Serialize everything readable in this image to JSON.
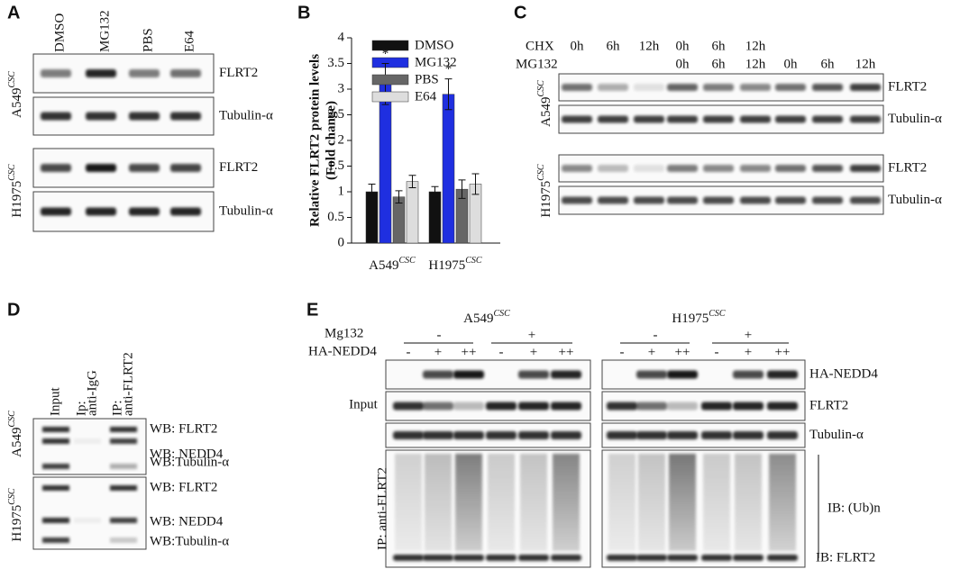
{
  "panel_a": {
    "label": "A",
    "lanes": [
      "DMSO",
      "MG132",
      "PBS",
      "E64"
    ],
    "blots": [
      "FLRT2",
      "Tubulin-α",
      "FLRT2",
      "Tubulin-α"
    ],
    "cell_lines": [
      {
        "name": "A549",
        "sup": "CSC"
      },
      {
        "name": "H1975",
        "sup": "CSC"
      }
    ]
  },
  "chart_data": {
    "type": "bar",
    "label": "B",
    "ylabel": [
      "Relative FLRT2 protein levels",
      "(Fold change)"
    ],
    "categories": [
      "A549",
      "H1975"
    ],
    "category_superscripts": [
      "CSC",
      "CSC"
    ],
    "series": [
      {
        "name": "DMSO",
        "color": "#111111",
        "values": [
          1.0,
          1.0
        ],
        "errors": [
          0.15,
          0.1
        ]
      },
      {
        "name": "MG132",
        "color": "#1f2fe0",
        "values": [
          3.1,
          2.9
        ],
        "errors": [
          0.4,
          0.3
        ],
        "annotations": [
          "*",
          "*"
        ]
      },
      {
        "name": "PBS",
        "color": "#666666",
        "values": [
          0.9,
          1.05
        ],
        "errors": [
          0.12,
          0.18
        ]
      },
      {
        "name": "E64",
        "color": "#dddddd",
        "values": [
          1.2,
          1.15
        ],
        "errors": [
          0.12,
          0.2
        ]
      }
    ],
    "ylim": [
      0,
      4
    ],
    "yticks": [
      0,
      0.5,
      1,
      1.5,
      2,
      2.5,
      3,
      3.5,
      4
    ],
    "legend": "top"
  },
  "panel_c": {
    "label": "C",
    "row_labels": [
      "CHX",
      "MG132"
    ],
    "chx": [
      "0h",
      "6h",
      "12h",
      "0h",
      "6h",
      "12h"
    ],
    "mg132": [
      "0h",
      "6h",
      "12h",
      "0h",
      "6h",
      "12h"
    ],
    "blots": [
      "FLRT2",
      "Tubulin-α",
      "FLRT2",
      "Tubulin-α"
    ],
    "cell_lines": [
      {
        "name": "A549",
        "sup": "CSC"
      },
      {
        "name": "H1975",
        "sup": "CSC"
      }
    ]
  },
  "panel_d": {
    "label": "D",
    "lanes": [
      [
        "Input"
      ],
      [
        "Ip:",
        "anti-IgG"
      ],
      [
        "IP:",
        "anti-FLRT2"
      ]
    ],
    "blots": [
      "WB: FLRT2",
      "WB: NEDD4",
      "WB:Tubulin-α",
      "WB: FLRT2",
      "WB: NEDD4",
      "WB:Tubulin-α"
    ],
    "cell_lines": [
      {
        "name": "A549",
        "sup": "CSC"
      },
      {
        "name": "H1975",
        "sup": "CSC"
      }
    ]
  },
  "panel_e": {
    "label": "E",
    "row_labels": [
      "Mg132",
      "HA-NEDD4"
    ],
    "cell_lines": [
      {
        "name": "A549",
        "sup": "CSC"
      },
      {
        "name": "H1975",
        "sup": "CSC"
      }
    ],
    "mg132": [
      "-",
      "+",
      "-",
      "+"
    ],
    "ha_nedd4": [
      "-",
      "+",
      "++",
      "-",
      "+",
      "++",
      "-",
      "+",
      "++",
      "-",
      "+",
      "++"
    ],
    "input": "Input",
    "ip": "IP: anti-FLRT2",
    "blots": [
      "HA-NEDD4",
      "FLRT2",
      "Tubulin-α"
    ],
    "ib": [
      "IB: (Ub)n",
      "IB: FLRT2"
    ]
  }
}
